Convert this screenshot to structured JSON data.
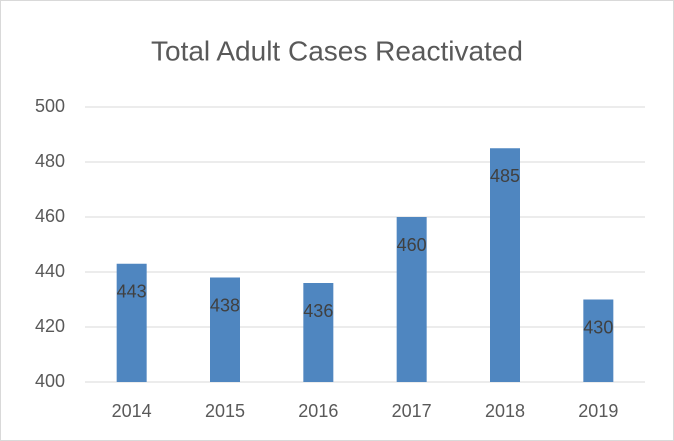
{
  "chart_data": {
    "type": "bar",
    "title": "Total Adult Cases Reactivated",
    "categories": [
      "2014",
      "2015",
      "2016",
      "2017",
      "2018",
      "2019"
    ],
    "values": [
      443,
      438,
      436,
      460,
      485,
      430
    ],
    "color": "#4f86c0",
    "ylim": [
      400,
      500
    ],
    "yticks": [
      400,
      420,
      440,
      460,
      480,
      500
    ],
    "grid": true,
    "data_labels": true
  }
}
